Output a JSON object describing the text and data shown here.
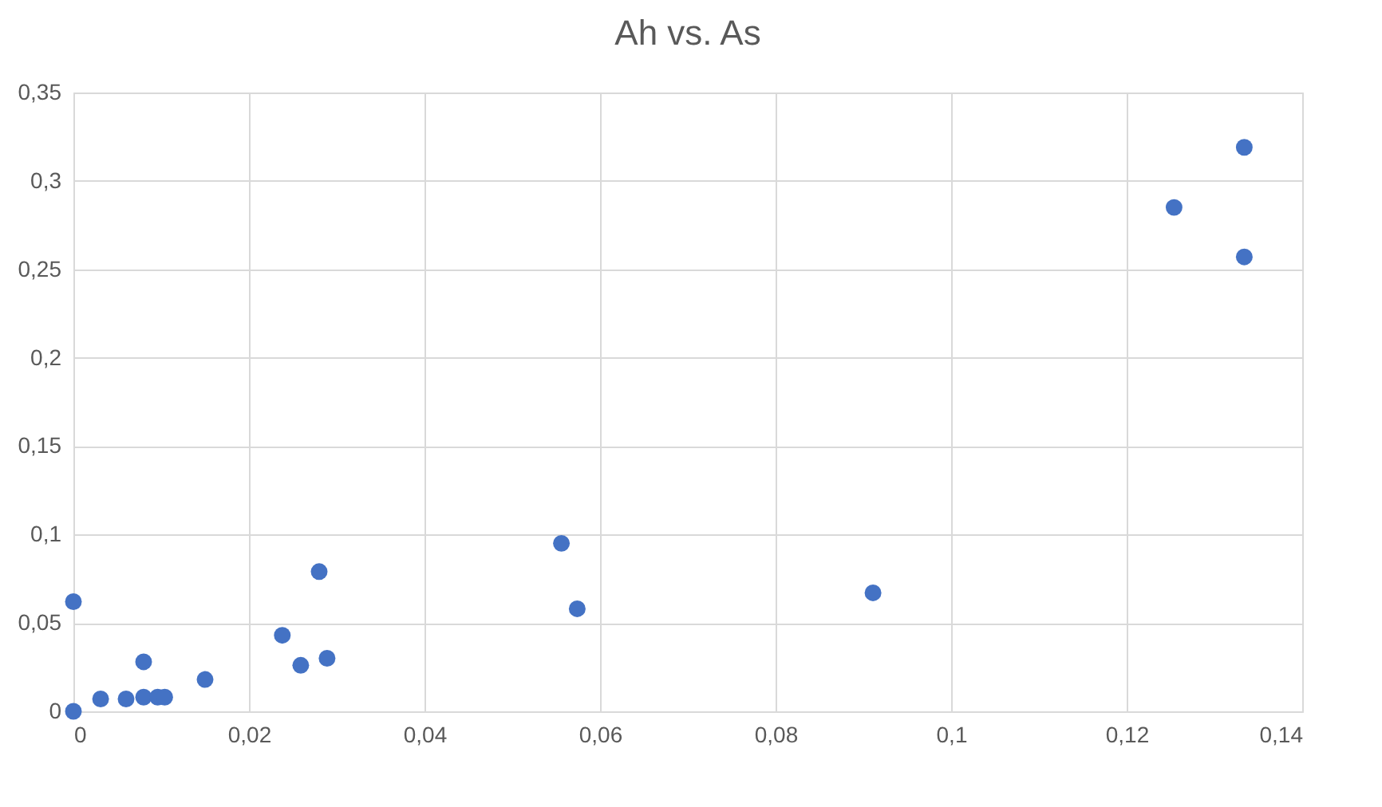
{
  "chart_data": {
    "type": "scatter",
    "title": "Ah vs. As",
    "x": [
      0,
      0,
      0.0031,
      0.006,
      0.008,
      0.008,
      0.0096,
      0.0104,
      0.015,
      0.0238,
      0.0259,
      0.0289,
      0.028,
      0.0556,
      0.0574,
      0.0911,
      0.1334,
      0.1254,
      0.1334
    ],
    "series": [
      {
        "color": "#4472c4",
        "values": [
          0.062,
          0,
          0.007,
          0.007,
          0.028,
          0.008,
          0.008,
          0.008,
          0.018,
          0.043,
          0.026,
          0.03,
          0.079,
          0.095,
          0.058,
          0.067,
          0.319,
          0.285,
          0.257
        ]
      }
    ],
    "xlim": [
      0,
      0.14
    ],
    "ylim": [
      0,
      0.35
    ],
    "xticks": [
      0,
      {
        "value": 0.02,
        "label": "0,02"
      },
      {
        "value": 0.04,
        "label": "0,04"
      },
      {
        "value": 0.06,
        "label": "0,06"
      },
      {
        "value": 0.08,
        "label": "0,08"
      },
      {
        "value": 0.1,
        "label": "0,1"
      },
      {
        "value": 0.12,
        "label": "0,12"
      },
      {
        "value": 0.14,
        "label": "0,14"
      }
    ],
    "yticks": [
      0,
      {
        "value": 0.05,
        "label": "0,05"
      },
      {
        "value": 0.1,
        "label": "0,1"
      },
      {
        "value": 0.15,
        "label": "0,15"
      },
      {
        "value": 0.2,
        "label": "0,2"
      },
      {
        "value": 0.25,
        "label": "0,25"
      },
      {
        "value": 0.3,
        "label": "0,3"
      },
      {
        "value": 0.35,
        "label": "0,35"
      }
    ],
    "grid": true,
    "marker": "circle"
  }
}
